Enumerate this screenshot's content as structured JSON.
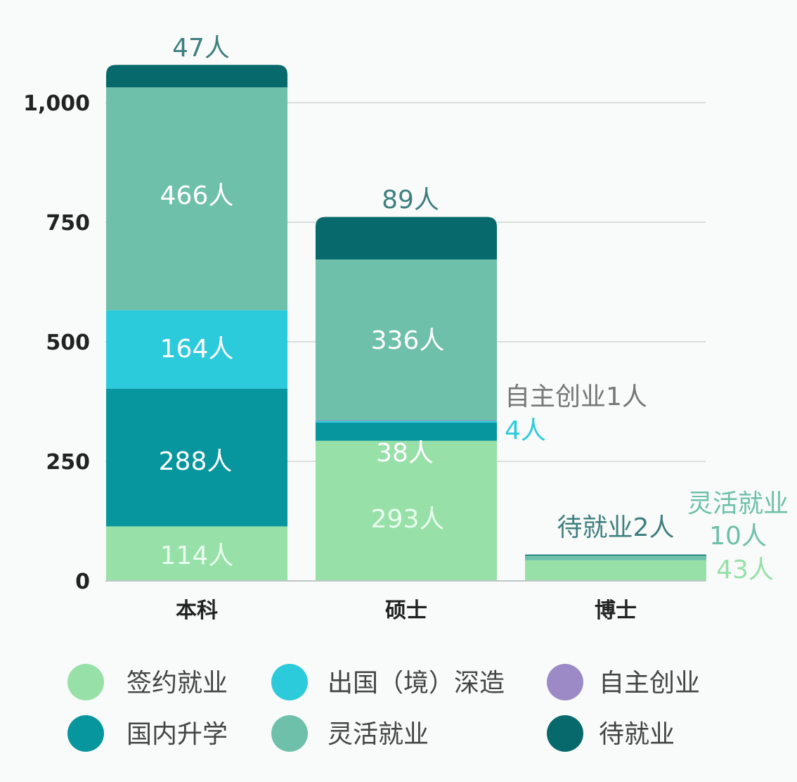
{
  "chart_data": {
    "type": "bar",
    "stacked": true,
    "categories": [
      "本科",
      "硕士",
      "博士"
    ],
    "series": [
      {
        "name": "签约就业",
        "color": "#97e0a8",
        "values": [
          114,
          293,
          43
        ]
      },
      {
        "name": "国内升学",
        "color": "#07959e",
        "values": [
          288,
          38,
          0
        ]
      },
      {
        "name": "出国（境）深造",
        "color": "#2ccbdb",
        "values": [
          164,
          4,
          0
        ]
      },
      {
        "name": "自主创业",
        "color": "#9b8ac6",
        "values": [
          0,
          1,
          0
        ]
      },
      {
        "name": "灵活就业",
        "color": "#6fc0aa",
        "values": [
          466,
          336,
          10
        ]
      },
      {
        "name": "待就业",
        "color": "#07696b",
        "values": [
          47,
          89,
          2
        ]
      }
    ],
    "ylim": [
      0,
      1000
    ],
    "yticks": [
      0,
      250,
      500,
      750,
      1000
    ],
    "ytick_labels": [
      "0",
      "250",
      "500",
      "750",
      "1,000"
    ],
    "grid": true,
    "legend_position": "bottom",
    "title": "",
    "xlabel": "",
    "ylabel": "",
    "labels": {
      "本科": [
        "114人",
        "288人",
        "164人",
        "",
        "466人",
        "47人"
      ],
      "硕士": [
        "293人",
        "38人",
        "4人",
        "自主创业1人",
        "336人",
        "89人"
      ],
      "博士": [
        "43人",
        "",
        "",
        "",
        "10人",
        "待就业2人"
      ]
    },
    "annotation_extra": "灵活就业"
  }
}
